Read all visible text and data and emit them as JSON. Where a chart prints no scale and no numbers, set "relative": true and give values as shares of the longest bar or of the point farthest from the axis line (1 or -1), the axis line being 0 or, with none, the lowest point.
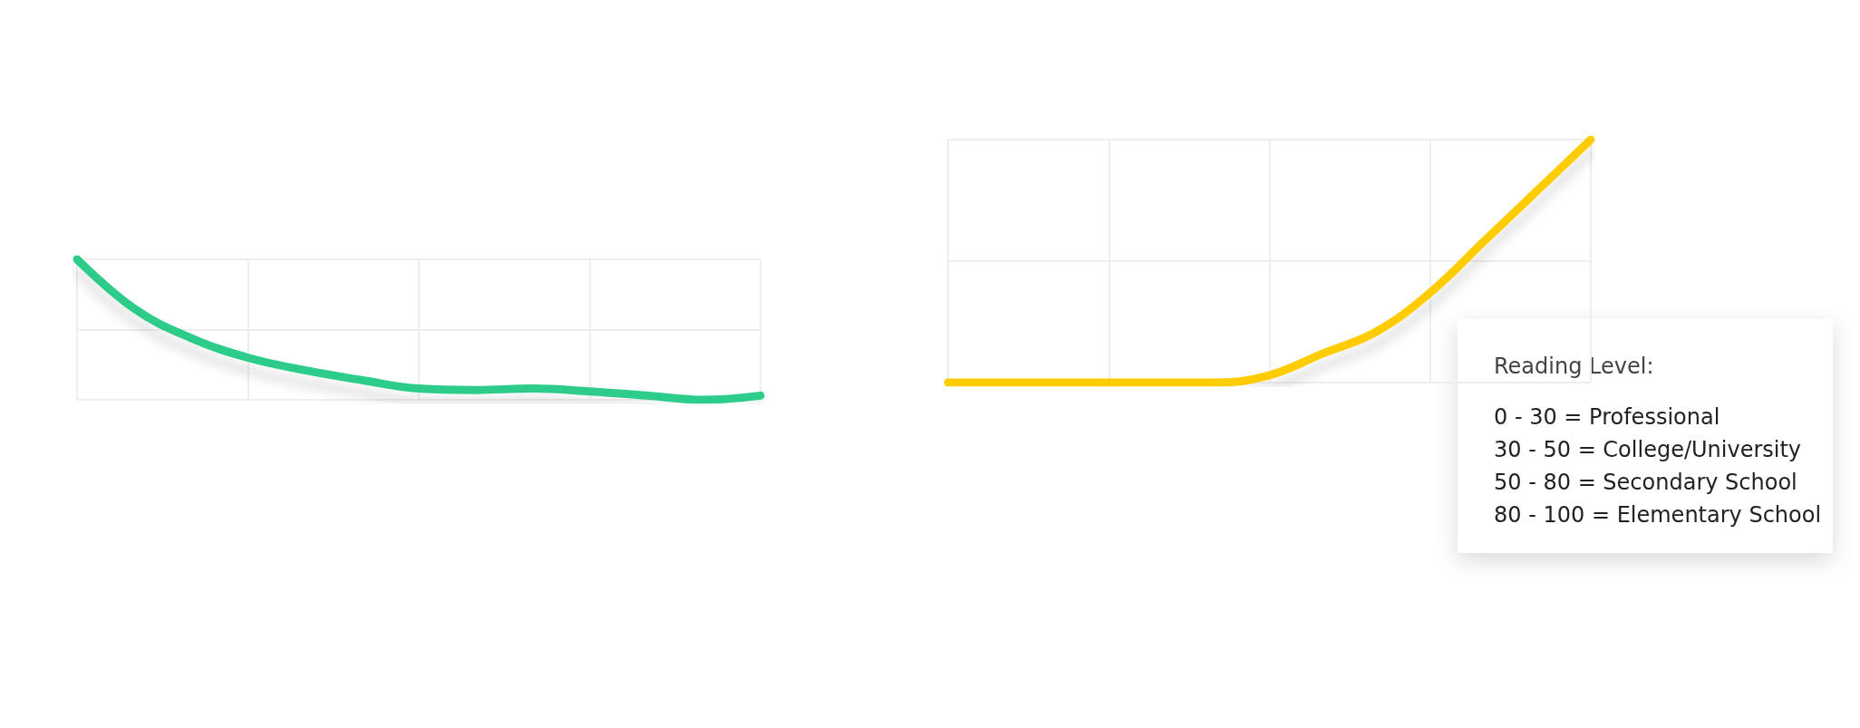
{
  "chart_data": [
    {
      "type": "line",
      "relative": true,
      "categories": [
        null,
        null,
        null,
        null,
        null,
        null,
        null,
        null,
        null,
        null,
        null,
        null,
        null
      ],
      "grid": true,
      "series": [
        {
          "color": "#2ecc8a",
          "values": [
            1,
            0.65,
            0.44,
            0.3,
            0.21,
            0.14,
            0.08,
            0.07,
            0.08,
            0.06,
            0.03,
            0,
            0.03
          ]
        }
      ]
    },
    {
      "type": "line",
      "relative": true,
      "categories": [
        null,
        null,
        null,
        null,
        null,
        null,
        null,
        null,
        null,
        null,
        null,
        null,
        null
      ],
      "grid": true,
      "series": [
        {
          "color": "#ffcc00",
          "values": [
            0,
            0,
            0,
            0,
            0,
            0,
            0.03,
            0.12,
            0.21,
            0.37,
            0.58,
            0.79,
            1
          ]
        }
      ],
      "annotations": [
        "Reading Level:",
        "0 - 30 = Professional",
        "30 - 50 = College/University",
        "50 - 80 = Secondary School",
        "80 - 100 = Elementary School"
      ]
    }
  ]
}
